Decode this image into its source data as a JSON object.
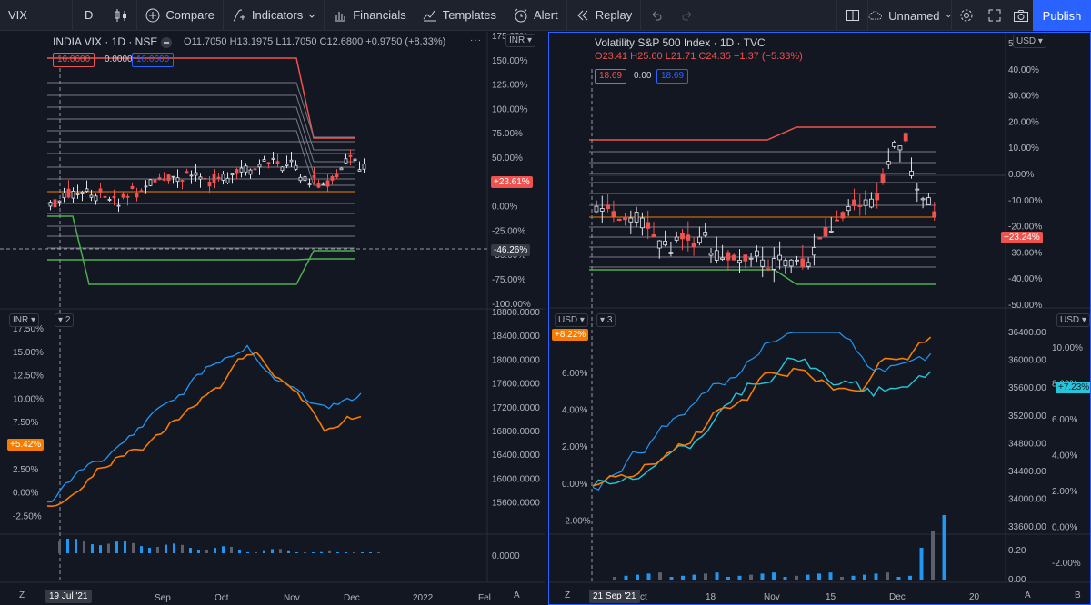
{
  "toolbar": {
    "symbol": "VIX",
    "interval": "D",
    "compare": "Compare",
    "indicators": "Indicators",
    "financials": "Financials",
    "templates": "Templates",
    "alert": "Alert",
    "replay": "Replay",
    "layout_name": "Unnamed",
    "publish": "Publish"
  },
  "left_chart": {
    "symbol_line": "INDIA VIX · 1D · NSE",
    "open": "11.7050",
    "high": "13.1975",
    "low": "11.7050",
    "close": "12.6800",
    "change": "+0.9750 (+8.33%)",
    "open_label": "O",
    "high_label": "H",
    "low_label": "L",
    "close_label": "C",
    "price_box_sell": "16.0600",
    "price_box_spread": "0.0000",
    "price_box_buy": "16.0600",
    "currency": "INR",
    "last_change_tag": "+23.61%",
    "crosshair_tag": "-46.26%",
    "top_axis_labels": [
      "175.00%",
      "150.00%",
      "125.00%",
      "100.00%",
      "75.00%",
      "50.00%",
      "25.00%",
      "0.00%",
      "-25.00%",
      "-50.00%",
      "-75.00%",
      "-100.00%"
    ],
    "lower_currency": "INR",
    "lower_pane_count": "2",
    "lower_left_labels": [
      "17.50%",
      "15.00%",
      "12.50%",
      "10.00%",
      "7.50%",
      "5.00%",
      "2.50%",
      "0.00%",
      "-2.50%"
    ],
    "lower_right_labels": [
      "18800.0000",
      "18400.0000",
      "18000.0000",
      "17600.0000",
      "17200.0000",
      "16800.0000",
      "16400.0000",
      "16000.0000",
      "15600.0000"
    ],
    "lower_tag": "+5.42%",
    "volume_label": "0.0000",
    "x_labels": [
      "Sep",
      "Oct",
      "Nov",
      "Dec",
      "2022",
      "Fel"
    ],
    "date_tag": "19 Jul '21",
    "z_button": "Z",
    "a_button": "A"
  },
  "right_chart": {
    "symbol_line": "Volatility S&P 500 Index · 1D · TVC",
    "open": "23.41",
    "high": "25.60",
    "low": "21.71",
    "close": "24.35",
    "change": "−1.37 (−5.33%)",
    "open_label": "O",
    "high_label": "H",
    "low_label": "L",
    "close_label": "C",
    "price_box_sell": "18.69",
    "price_box_spread": "0.00",
    "price_box_buy": "18.69",
    "currency": "USD",
    "last_change_tag": "−23.24%",
    "top_axis_labels": [
      "50.00%",
      "40.00%",
      "30.00%",
      "20.00%",
      "10.00%",
      "0.00%",
      "-10.00%",
      "-20.00%",
      "-30.00%",
      "-40.00%",
      "-50.00%"
    ],
    "lower_currency_left": "USD",
    "lower_currency_right": "USD",
    "lower_pane_count": "3",
    "lower_left_tag": "+8.22%",
    "lower_left_labels": [
      "6.00%",
      "4.00%",
      "2.00%",
      "0.00%",
      "-2.00%"
    ],
    "lower_mid_labels": [
      "36400.00",
      "36000.00",
      "35600.00",
      "35200.00",
      "34800.00",
      "34400.00",
      "34000.00",
      "33600.00"
    ],
    "lower_right_labels": [
      "10.00%",
      "8.00%",
      "6.00%",
      "4.00%",
      "2.00%",
      "0.00%",
      "-2.00%"
    ],
    "lower_right_tag": "+7.23%",
    "volume_labels": [
      "0.20",
      "0.00"
    ],
    "x_labels": [
      "ct",
      "18",
      "Nov",
      "15",
      "Dec",
      "20"
    ],
    "date_tag": "21 Sep '21",
    "z_button": "Z",
    "a_button": "A",
    "b_button": "B"
  },
  "colors": {
    "background": "#131722",
    "toolbar": "#1e222d",
    "accent": "#2962ff",
    "red": "#ef5350",
    "green": "#4caf50",
    "orange": "#f57c00",
    "blue": "#2196f3",
    "cyan": "#26c6da"
  }
}
